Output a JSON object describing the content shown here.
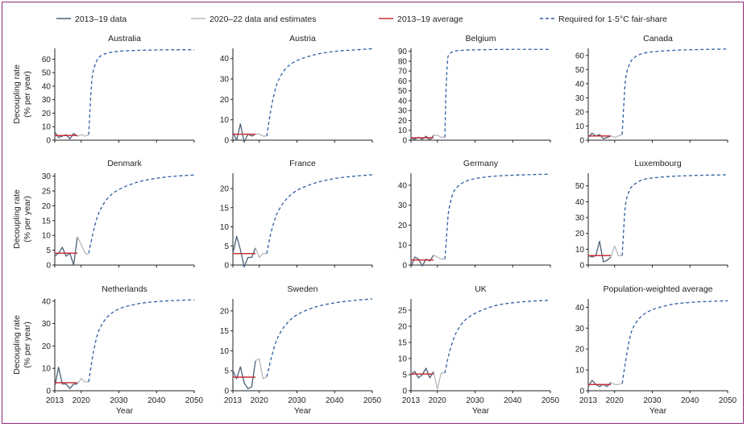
{
  "legend": {
    "items": [
      {
        "label": "2013–19 data",
        "color": "#4a6075",
        "style": "solid"
      },
      {
        "label": "2020–22 data and estimates",
        "color": "#b4b8bc",
        "style": "solid"
      },
      {
        "label": "2013–19 average",
        "color": "#c8323c",
        "style": "solid"
      },
      {
        "label": "Required for 1·5°C fair-share",
        "color": "#2e5fa3",
        "style": "dashed"
      }
    ]
  },
  "colors": {
    "data_2013_19": "#4a6075",
    "data_2020_22": "#b4b8bc",
    "average": "#c8323c",
    "required": "#2e5fa3",
    "frame": "#8a2a78"
  },
  "ylabel_line1": "Decoupling rate",
  "ylabel_line2": "(% per year)",
  "xlabel": "Year",
  "x_ticks": [
    2013,
    2020,
    2030,
    2040,
    2050
  ],
  "chart_data": [
    {
      "type": "line",
      "title": "Australia",
      "ylim": [
        0,
        68
      ],
      "yticks": [
        0,
        10,
        20,
        30,
        40,
        50,
        60
      ],
      "series": [
        {
          "name": "2013–19 data",
          "x": [
            2013,
            2014,
            2015,
            2016,
            2017,
            2018,
            2019
          ],
          "values": [
            6,
            2,
            3,
            4,
            1,
            5,
            3
          ]
        },
        {
          "name": "2020–22 data and estimates",
          "x": [
            2019,
            2020,
            2021,
            2022
          ],
          "values": [
            3,
            4,
            3,
            4
          ]
        },
        {
          "name": "2013–19 average",
          "x": [
            2013,
            2019
          ],
          "values": [
            3.4,
            3.4
          ]
        },
        {
          "name": "Required for 1·5°C fair-share",
          "x": [
            2022,
            2022.5,
            2023,
            2024,
            2025,
            2027,
            2030,
            2035,
            2040,
            2045,
            2050
          ],
          "values": [
            4,
            30,
            48,
            58,
            62,
            64.5,
            65.8,
            66.5,
            66.8,
            67,
            67
          ]
        }
      ]
    },
    {
      "type": "line",
      "title": "Austria",
      "ylim": [
        0,
        45
      ],
      "yticks": [
        0,
        10,
        20,
        30,
        40
      ],
      "series": [
        {
          "name": "2013–19 data",
          "x": [
            2013,
            2014,
            2015,
            2016,
            2017,
            2018,
            2019
          ],
          "values": [
            4,
            0,
            8,
            -1,
            3,
            2,
            3
          ]
        },
        {
          "name": "2020–22 data and estimates",
          "x": [
            2019,
            2020,
            2021,
            2022
          ],
          "values": [
            3,
            3,
            2,
            2
          ]
        },
        {
          "name": "2013–19 average",
          "x": [
            2013,
            2019
          ],
          "values": [
            2.9,
            2.9
          ]
        },
        {
          "name": "Required for 1·5°C fair-share",
          "x": [
            2022,
            2023,
            2024,
            2025,
            2027,
            2030,
            2035,
            2040,
            2045,
            2050
          ],
          "values": [
            2,
            14,
            23,
            29,
            35,
            39,
            42,
            43.5,
            44.2,
            44.8
          ]
        }
      ]
    },
    {
      "type": "line",
      "title": "Belgium",
      "ylim": [
        0,
        93
      ],
      "yticks": [
        0,
        10,
        20,
        30,
        40,
        50,
        60,
        70,
        80,
        90
      ],
      "series": [
        {
          "name": "2013–19 data",
          "x": [
            2013,
            2014,
            2015,
            2016,
            2017,
            2018,
            2019
          ],
          "values": [
            2,
            1,
            3,
            1,
            4,
            0,
            5
          ]
        },
        {
          "name": "2020–22 data and estimates",
          "x": [
            2019,
            2020,
            2021,
            2022
          ],
          "values": [
            5,
            5,
            3,
            3
          ]
        },
        {
          "name": "2013–19 average",
          "x": [
            2013,
            2019
          ],
          "values": [
            2.5,
            2.5
          ]
        },
        {
          "name": "Required for 1·5°C fair-share",
          "x": [
            2022,
            2022.3,
            2022.7,
            2023,
            2024,
            2025,
            2030,
            2040,
            2050
          ],
          "values": [
            3,
            50,
            80,
            86,
            89.5,
            90.5,
            91.5,
            92,
            92
          ]
        }
      ]
    },
    {
      "type": "line",
      "title": "Canada",
      "ylim": [
        0,
        65
      ],
      "yticks": [
        0,
        10,
        20,
        30,
        40,
        50,
        60
      ],
      "series": [
        {
          "name": "2013–19 data",
          "x": [
            2013,
            2014,
            2015,
            2016,
            2017,
            2018,
            2019
          ],
          "values": [
            2,
            5,
            3,
            4,
            1,
            2,
            3
          ]
        },
        {
          "name": "2020–22 data and estimates",
          "x": [
            2019,
            2020,
            2021,
            2022
          ],
          "values": [
            3,
            2,
            3,
            4
          ]
        },
        {
          "name": "2013–19 average",
          "x": [
            2013,
            2019
          ],
          "values": [
            3.0,
            3.0
          ]
        },
        {
          "name": "Required for 1·5°C fair-share",
          "x": [
            2022,
            2022.5,
            2023,
            2024,
            2025,
            2027,
            2030,
            2035,
            2040,
            2045,
            2050
          ],
          "values": [
            4,
            28,
            45,
            54,
            58,
            61,
            62.5,
            63.5,
            64,
            64.3,
            64.5
          ]
        }
      ]
    },
    {
      "type": "line",
      "title": "Denmark",
      "ylim": [
        0,
        31
      ],
      "yticks": [
        0,
        5,
        10,
        15,
        20,
        25,
        30
      ],
      "series": [
        {
          "name": "2013–19 data",
          "x": [
            2013,
            2014,
            2015,
            2016,
            2017,
            2018,
            2019
          ],
          "values": [
            3,
            4,
            6,
            3,
            4,
            0,
            9.5
          ]
        },
        {
          "name": "2020–22 data and estimates",
          "x": [
            2019,
            2020,
            2021,
            2022
          ],
          "values": [
            9.5,
            7,
            4,
            3.5
          ]
        },
        {
          "name": "2013–19 average",
          "x": [
            2013,
            2019
          ],
          "values": [
            4.0,
            4.0
          ]
        },
        {
          "name": "Required for 1·5°C fair-share",
          "x": [
            2022,
            2023,
            2024,
            2025,
            2027,
            2030,
            2035,
            2040,
            2045,
            2050
          ],
          "values": [
            4,
            10,
            15,
            18.5,
            22.5,
            25.5,
            28,
            29.3,
            30,
            30.4
          ]
        }
      ]
    },
    {
      "type": "line",
      "title": "France",
      "ylim": [
        0,
        24
      ],
      "yticks": [
        0,
        5,
        10,
        15,
        20
      ],
      "series": [
        {
          "name": "2013–19 data",
          "x": [
            2013,
            2014,
            2015,
            2016,
            2017,
            2018,
            2019
          ],
          "values": [
            3,
            7.5,
            4,
            -0.5,
            2,
            2,
            4.5
          ]
        },
        {
          "name": "2020–22 data and estimates",
          "x": [
            2019,
            2020,
            2021,
            2022
          ],
          "values": [
            4.5,
            2,
            3,
            3
          ]
        },
        {
          "name": "2013–19 average",
          "x": [
            2013,
            2019
          ],
          "values": [
            3.0,
            3.0
          ]
        },
        {
          "name": "Required for 1·5°C fair-share",
          "x": [
            2022,
            2023,
            2024,
            2025,
            2027,
            2030,
            2035,
            2040,
            2045,
            2050
          ],
          "values": [
            3,
            8,
            11.5,
            14,
            17,
            19.5,
            21.5,
            22.6,
            23.2,
            23.6
          ]
        }
      ]
    },
    {
      "type": "line",
      "title": "Germany",
      "ylim": [
        0,
        46
      ],
      "yticks": [
        0,
        10,
        20,
        30,
        40
      ],
      "series": [
        {
          "name": "2013–19 data",
          "x": [
            2013,
            2014,
            2015,
            2016,
            2017,
            2018,
            2019
          ],
          "values": [
            -1,
            4,
            3,
            -0.5,
            3,
            2,
            5
          ]
        },
        {
          "name": "2020–22 data and estimates",
          "x": [
            2019,
            2020,
            2021,
            2022
          ],
          "values": [
            5,
            4,
            3,
            3
          ]
        },
        {
          "name": "2013–19 average",
          "x": [
            2013,
            2019
          ],
          "values": [
            2.5,
            2.5
          ]
        },
        {
          "name": "Required for 1·5°C fair-share",
          "x": [
            2022,
            2022.6,
            2023,
            2024,
            2025,
            2027,
            2030,
            2035,
            2040,
            2045,
            2050
          ],
          "values": [
            3,
            18,
            27,
            35,
            38.5,
            41.5,
            43.3,
            44.5,
            45,
            45.3,
            45.5
          ]
        }
      ]
    },
    {
      "type": "line",
      "title": "Luxembourg",
      "ylim": [
        0,
        58
      ],
      "yticks": [
        0,
        10,
        20,
        30,
        40,
        50
      ],
      "series": [
        {
          "name": "2013–19 data",
          "x": [
            2013,
            2014,
            2015,
            2016,
            2017,
            2018,
            2019
          ],
          "values": [
            6,
            5,
            6,
            15,
            2,
            3,
            5
          ]
        },
        {
          "name": "2020–22 data and estimates",
          "x": [
            2019,
            2020,
            2021,
            2022
          ],
          "values": [
            5,
            12,
            6,
            6
          ]
        },
        {
          "name": "2013–19 average",
          "x": [
            2013,
            2019
          ],
          "values": [
            6.0,
            6.0
          ]
        },
        {
          "name": "Required for 1·5°C fair-share",
          "x": [
            2022,
            2022.6,
            2023,
            2024,
            2025,
            2027,
            2030,
            2035,
            2040,
            2045,
            2050
          ],
          "values": [
            6,
            30,
            40,
            47.5,
            50.5,
            53.5,
            55,
            56,
            56.5,
            56.8,
            57
          ]
        }
      ]
    },
    {
      "type": "line",
      "title": "Netherlands",
      "ylim": [
        0,
        41
      ],
      "yticks": [
        0,
        10,
        20,
        30,
        40
      ],
      "series": [
        {
          "name": "2013–19 data",
          "x": [
            2013,
            2014,
            2015,
            2016,
            2017,
            2018,
            2019
          ],
          "values": [
            2,
            10.5,
            3,
            3,
            1,
            3,
            3
          ]
        },
        {
          "name": "2020–22 data and estimates",
          "x": [
            2019,
            2020,
            2021,
            2022
          ],
          "values": [
            3,
            5.5,
            4,
            4
          ]
        },
        {
          "name": "2013–19 average",
          "x": [
            2013,
            2019
          ],
          "values": [
            3.6,
            3.6
          ]
        },
        {
          "name": "Required for 1·5°C fair-share",
          "x": [
            2022,
            2023,
            2024,
            2025,
            2027,
            2030,
            2035,
            2040,
            2045,
            2050
          ],
          "values": [
            4,
            15,
            23,
            28,
            33,
            36.5,
            38.8,
            39.8,
            40.3,
            40.6
          ]
        }
      ]
    },
    {
      "type": "line",
      "title": "Sweden",
      "ylim": [
        0,
        23
      ],
      "yticks": [
        0,
        5,
        10,
        15,
        20
      ],
      "series": [
        {
          "name": "2013–19 data",
          "x": [
            2013,
            2014,
            2015,
            2016,
            2017,
            2018,
            2019
          ],
          "values": [
            5,
            3,
            6,
            2,
            0.5,
            1,
            7.5
          ]
        },
        {
          "name": "2020–22 data and estimates",
          "x": [
            2019,
            2020,
            2021,
            2022
          ],
          "values": [
            7.5,
            8,
            3,
            3.5
          ]
        },
        {
          "name": "2013–19 average",
          "x": [
            2013,
            2019
          ],
          "values": [
            3.4,
            3.4
          ]
        },
        {
          "name": "Required for 1·5°C fair-share",
          "x": [
            2022,
            2023,
            2024,
            2025,
            2027,
            2030,
            2035,
            2040,
            2045,
            2050
          ],
          "values": [
            3.5,
            7.5,
            11,
            13.5,
            16.5,
            19,
            21,
            22,
            22.6,
            23
          ]
        }
      ]
    },
    {
      "type": "line",
      "title": "UK",
      "ylim": [
        0,
        28.5
      ],
      "yticks": [
        0,
        5,
        10,
        15,
        20,
        25
      ],
      "series": [
        {
          "name": "2013–19 data",
          "x": [
            2013,
            2014,
            2015,
            2016,
            2017,
            2018,
            2019
          ],
          "values": [
            5,
            6,
            4,
            5,
            7,
            4,
            6
          ]
        },
        {
          "name": "2020–22 data and estimates",
          "x": [
            2019,
            2020,
            2021,
            2022
          ],
          "values": [
            6,
            0.5,
            5.5,
            5.5
          ]
        },
        {
          "name": "2013–19 average",
          "x": [
            2013,
            2019
          ],
          "values": [
            5.2,
            5.2
          ]
        },
        {
          "name": "Required for 1·5°C fair-share",
          "x": [
            2022,
            2023,
            2024,
            2025,
            2027,
            2030,
            2035,
            2040,
            2045,
            2050
          ],
          "values": [
            5.5,
            11,
            15,
            18,
            21.5,
            24,
            26.3,
            27.3,
            27.8,
            28.1
          ]
        }
      ]
    },
    {
      "type": "line",
      "title": "Population-weighted average",
      "ylim": [
        0,
        44
      ],
      "yticks": [
        0,
        10,
        20,
        30,
        40
      ],
      "series": [
        {
          "name": "2013–19 data",
          "x": [
            2013,
            2014,
            2015,
            2016,
            2017,
            2018,
            2019
          ],
          "values": [
            2,
            5,
            3,
            2,
            3,
            2,
            4
          ]
        },
        {
          "name": "2020–22 data and estimates",
          "x": [
            2019,
            2020,
            2021,
            2022
          ],
          "values": [
            4,
            3,
            3,
            3.5
          ]
        },
        {
          "name": "2013–19 average",
          "x": [
            2013,
            2019
          ],
          "values": [
            3.0,
            3.0
          ]
        },
        {
          "name": "Required for 1·5°C fair-share",
          "x": [
            2022,
            2023,
            2024,
            2025,
            2027,
            2030,
            2035,
            2040,
            2045,
            2050
          ],
          "values": [
            3.5,
            15,
            25,
            30.5,
            35.5,
            38.8,
            41.3,
            42.3,
            42.8,
            43.1
          ]
        }
      ]
    }
  ]
}
